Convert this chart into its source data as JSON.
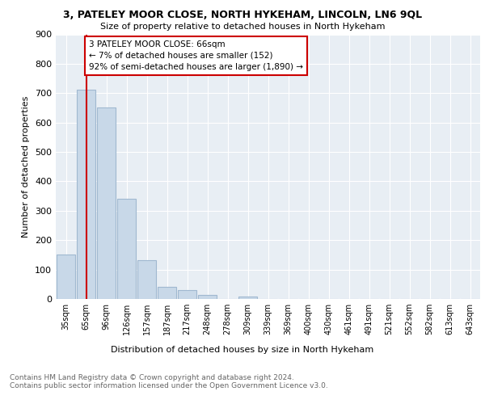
{
  "title": "3, PATELEY MOOR CLOSE, NORTH HYKEHAM, LINCOLN, LN6 9QL",
  "subtitle": "Size of property relative to detached houses in North Hykeham",
  "xlabel": "Distribution of detached houses by size in North Hykeham",
  "ylabel": "Number of detached properties",
  "categories": [
    "35sqm",
    "65sqm",
    "96sqm",
    "126sqm",
    "157sqm",
    "187sqm",
    "217sqm",
    "248sqm",
    "278sqm",
    "309sqm",
    "339sqm",
    "369sqm",
    "400sqm",
    "430sqm",
    "461sqm",
    "491sqm",
    "521sqm",
    "552sqm",
    "582sqm",
    "613sqm",
    "643sqm"
  ],
  "values": [
    152,
    713,
    651,
    340,
    131,
    42,
    30,
    13,
    0,
    8,
    0,
    0,
    0,
    0,
    0,
    0,
    0,
    0,
    0,
    0,
    0
  ],
  "bar_color": "#c8d8e8",
  "bar_edge_color": "#a0b8d0",
  "property_line_x": 1,
  "property_line_color": "#cc0000",
  "annotation_text": "3 PATELEY MOOR CLOSE: 66sqm\n← 7% of detached houses are smaller (152)\n92% of semi-detached houses are larger (1,890) →",
  "annotation_box_color": "#cc0000",
  "ylim": [
    0,
    900
  ],
  "yticks": [
    0,
    100,
    200,
    300,
    400,
    500,
    600,
    700,
    800,
    900
  ],
  "background_color": "#e8eef4",
  "footer": "Contains HM Land Registry data © Crown copyright and database right 2024.\nContains public sector information licensed under the Open Government Licence v3.0."
}
